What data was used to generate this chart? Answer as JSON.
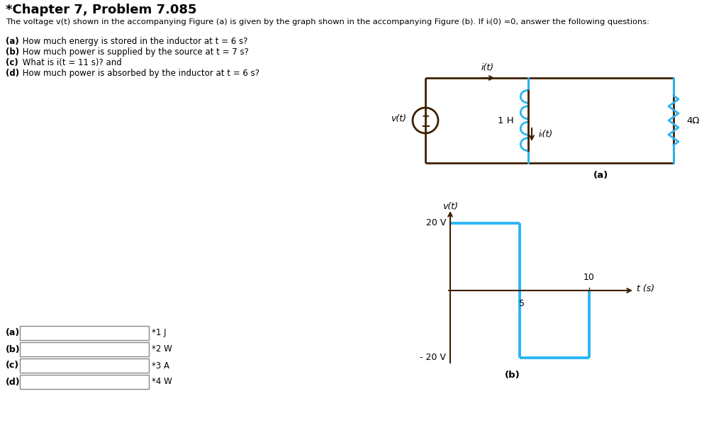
{
  "title": "*Chapter 7, Problem 7.085",
  "description_line": "The voltage v(t) shown in the accompanying Figure (a) is given by the graph shown in the accompanying Figure (b). If iₗ(0) =0, answer the following questions:",
  "questions": [
    "(a) How much energy is stored in the inductor at t = 6 s?",
    "(b) How much power is supplied by the source at t = 7 s?",
    "(c) What is i(t = 11 s)? and",
    "(d) How much power is absorbed by the inductor at t = 6 s?"
  ],
  "answer_labels": [
    "(a)",
    "(b)",
    "(c)",
    "(d)"
  ],
  "answer_units": [
    "*1 J",
    "*2 W",
    "*3 A",
    "*4 W"
  ],
  "circuit_color": "#3d2000",
  "component_color": "#29b6f6",
  "graph_color": "#29b6f6",
  "axis_color": "#3d2000",
  "background": "#ffffff"
}
